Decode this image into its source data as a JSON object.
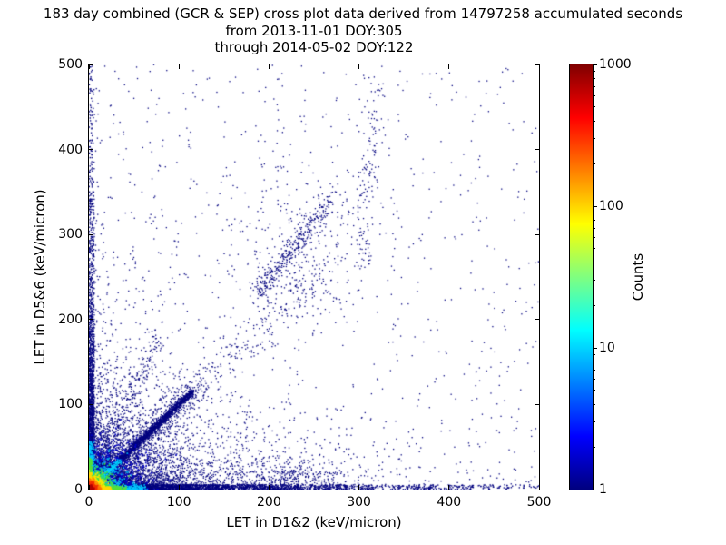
{
  "chart_data": {
    "type": "scatter",
    "title": "183 day combined (GCR & SEP) cross plot data derived from 14797258 accumulated seconds",
    "subtitle_from": "from 2013-11-01 DOY:305",
    "subtitle_through": "through 2014-05-02 DOY:122",
    "xlabel": "LET in D1&2 (keV/micron)",
    "ylabel": "LET in D5&6 (keV/micron)",
    "xlim": [
      0,
      500
    ],
    "ylim": [
      0,
      500
    ],
    "xticks": [
      0,
      100,
      200,
      300,
      400,
      500
    ],
    "yticks": [
      0,
      100,
      200,
      300,
      400,
      500
    ],
    "grid": false,
    "legend": "none",
    "base_point_color": "#00007f",
    "colorbar": {
      "label": "Counts",
      "scale": "log",
      "min": 1,
      "max": 1000,
      "ticks": [
        1,
        10,
        100,
        1000
      ],
      "minor_tick_values": [
        2,
        3,
        4,
        5,
        6,
        7,
        8,
        9,
        20,
        30,
        40,
        50,
        60,
        70,
        80,
        90,
        200,
        300,
        400,
        500,
        600,
        700,
        800,
        900
      ],
      "colormap": "jet",
      "stops": [
        [
          0,
          "#00007f"
        ],
        [
          0.125,
          "#0000ff"
        ],
        [
          0.375,
          "#00ffff"
        ],
        [
          0.625,
          "#ffff00"
        ],
        [
          0.875,
          "#ff0000"
        ],
        [
          1,
          "#800000"
        ]
      ]
    },
    "density_features": [
      {
        "name": "background-sparse",
        "kind": "uniform",
        "n": 780,
        "x": [
          0,
          500
        ],
        "y": [
          0,
          500
        ],
        "color": "#00007f",
        "size": 1.3,
        "seed": 11
      },
      {
        "name": "low-cloud-broad",
        "kind": "exp",
        "n": 2400,
        "sx": 65,
        "sy": 42,
        "color": "#00007f",
        "size": 1.3,
        "seed": 21
      },
      {
        "name": "low-cloud-tight",
        "kind": "exp",
        "n": 1700,
        "sx": 26,
        "sy": 18,
        "color": "#00007f",
        "size": 1.4,
        "seed": 31
      },
      {
        "name": "left-tall-cloud",
        "kind": "exp",
        "n": 520,
        "sx": 30,
        "sy": 130,
        "color": "#00007f",
        "size": 1.3,
        "seed": 41
      },
      {
        "name": "bottom-wide-cloud",
        "kind": "exp",
        "n": 800,
        "sx": 130,
        "sy": 22,
        "color": "#00007f",
        "size": 1.3,
        "seed": 51
      },
      {
        "name": "bottom-band",
        "kind": "strip_x",
        "n": 2000,
        "yr": [
          0,
          6
        ],
        "scale": 130,
        "color": "#00007f",
        "size": 1.4,
        "seed": 61
      },
      {
        "name": "bottom-band-far",
        "kind": "strip_x",
        "n": 450,
        "yr": [
          0,
          5
        ],
        "scale": 280,
        "color": "#00007f",
        "size": 1.4,
        "seed": 71
      },
      {
        "name": "left-band",
        "kind": "strip_y",
        "n": 1500,
        "xr": [
          0,
          6
        ],
        "scale": 110,
        "color": "#00007f",
        "size": 1.4,
        "seed": 81
      },
      {
        "name": "left-band-far",
        "kind": "strip_y",
        "n": 350,
        "xr": [
          0,
          4
        ],
        "scale": 260,
        "color": "#00007f",
        "size": 1.4,
        "seed": 91
      },
      {
        "name": "main-diagonal",
        "kind": "line",
        "n": 1500,
        "x1": 4,
        "y1": 4,
        "x2": 115,
        "y2": 115,
        "w": 1.8,
        "color": "#00007f",
        "size": 1.4,
        "seed": 101
      },
      {
        "name": "main-diagonal-halo",
        "kind": "line",
        "n": 650,
        "x1": 5,
        "y1": 5,
        "x2": 120,
        "y2": 120,
        "w": 7,
        "color": "#00007f",
        "size": 1.3,
        "seed": 111
      },
      {
        "name": "diagonal-extension",
        "kind": "line",
        "n": 230,
        "x1": 115,
        "y1": 115,
        "x2": 265,
        "y2": 265,
        "w": 14,
        "color": "#00007f",
        "size": 1.3,
        "seed": 121
      },
      {
        "name": "steep-streak",
        "kind": "line",
        "n": 230,
        "x1": 8,
        "y1": 12,
        "x2": 80,
        "y2": 185,
        "w": 5.5,
        "color": "#00007f",
        "size": 1.3,
        "seed": 131
      },
      {
        "name": "upper-diagonal-streak",
        "kind": "line",
        "n": 330,
        "x1": 185,
        "y1": 228,
        "x2": 266,
        "y2": 338,
        "w": 5,
        "color": "#00007f",
        "size": 1.3,
        "seed": 141
      },
      {
        "name": "upper-diagonal-cloud",
        "kind": "gauss",
        "n": 240,
        "cx": 235,
        "cy": 290,
        "sx": 38,
        "sy": 48,
        "color": "#00007f",
        "size": 1.3,
        "seed": 151
      },
      {
        "name": "bottom-mid-knot",
        "kind": "gauss",
        "n": 280,
        "cx": 228,
        "cy": 14,
        "sx": 34,
        "sy": 11,
        "color": "#00007f",
        "size": 1.3,
        "seed": 161
      },
      {
        "name": "vertical-streak-300",
        "kind": "line",
        "n": 150,
        "x1": 303,
        "y1": 255,
        "x2": 317,
        "y2": 485,
        "w": 7,
        "color": "#00007f",
        "size": 1.3,
        "seed": 171
      },
      {
        "name": "origin-blue-halo",
        "kind": "gauss",
        "n": 1400,
        "cx": 7,
        "cy": 7,
        "sx": 26,
        "sy": 24,
        "color": "#0000cd",
        "size": 1.6,
        "seed": 181
      },
      {
        "name": "origin-cyan",
        "kind": "gauss",
        "n": 950,
        "cx": 5.5,
        "cy": 5.5,
        "sx": 15,
        "sy": 14,
        "color": "#00b2ee",
        "size": 1.7,
        "seed": 191
      },
      {
        "name": "axis-cyan-x",
        "kind": "line",
        "n": 280,
        "x1": 0,
        "y1": 2,
        "x2": 62,
        "y2": 2,
        "w": 2.2,
        "color": "#00c8ff",
        "size": 1.6,
        "seed": 201
      },
      {
        "name": "axis-cyan-y",
        "kind": "line",
        "n": 240,
        "x1": 2,
        "y1": 0,
        "x2": 2,
        "y2": 55,
        "w": 2.2,
        "color": "#00c8ff",
        "size": 1.6,
        "seed": 211
      },
      {
        "name": "diagonal-cyan",
        "kind": "line",
        "n": 170,
        "x1": 4,
        "y1": 4,
        "x2": 34,
        "y2": 34,
        "w": 1.6,
        "color": "#00d5ff",
        "size": 1.5,
        "seed": 221
      },
      {
        "name": "origin-green",
        "kind": "gauss",
        "n": 820,
        "cx": 4.5,
        "cy": 4.5,
        "sx": 9.5,
        "sy": 9,
        "color": "#3ee04a",
        "size": 1.7,
        "seed": 231
      },
      {
        "name": "axis-green-x",
        "kind": "line",
        "n": 240,
        "x1": 0,
        "y1": 1.3,
        "x2": 40,
        "y2": 1.3,
        "w": 1.5,
        "color": "#55e139",
        "size": 1.6,
        "seed": 241
      },
      {
        "name": "axis-green-y",
        "kind": "line",
        "n": 210,
        "x1": 1.3,
        "y1": 0,
        "x2": 1.3,
        "y2": 36,
        "w": 1.5,
        "color": "#55e139",
        "size": 1.6,
        "seed": 251
      },
      {
        "name": "origin-yellow",
        "kind": "gauss",
        "n": 680,
        "cx": 3.5,
        "cy": 3.5,
        "sx": 6,
        "sy": 5.6,
        "color": "#ffe600",
        "size": 1.8,
        "seed": 261
      },
      {
        "name": "axis-yellow-x",
        "kind": "line",
        "n": 210,
        "x1": 0,
        "y1": 0.9,
        "x2": 24,
        "y2": 0.9,
        "w": 1.1,
        "color": "#ffd900",
        "size": 1.6,
        "seed": 271
      },
      {
        "name": "axis-yellow-y",
        "kind": "line",
        "n": 180,
        "x1": 0.9,
        "y1": 0,
        "x2": 0.9,
        "y2": 20,
        "w": 1.1,
        "color": "#ffd900",
        "size": 1.6,
        "seed": 281
      },
      {
        "name": "origin-orange",
        "kind": "gauss",
        "n": 580,
        "cx": 2.8,
        "cy": 2.8,
        "sx": 3.8,
        "sy": 3.6,
        "color": "#ff8c00",
        "size": 1.8,
        "seed": 291
      },
      {
        "name": "axis-orange-x",
        "kind": "line",
        "n": 160,
        "x1": 0,
        "y1": 0.6,
        "x2": 13,
        "y2": 0.6,
        "w": 0.9,
        "color": "#ff7400",
        "size": 1.5,
        "seed": 301
      },
      {
        "name": "axis-orange-y",
        "kind": "line",
        "n": 140,
        "x1": 0.6,
        "y1": 0,
        "x2": 0.6,
        "y2": 11,
        "w": 0.9,
        "color": "#ff7400",
        "size": 1.5,
        "seed": 311
      },
      {
        "name": "origin-red",
        "kind": "gauss",
        "n": 520,
        "cx": 2.2,
        "cy": 2.2,
        "sx": 2.4,
        "sy": 2.3,
        "color": "#f22c00",
        "size": 1.8,
        "seed": 321
      },
      {
        "name": "origin-dark-red",
        "kind": "gauss",
        "n": 280,
        "cx": 1.5,
        "cy": 1.5,
        "sx": 1.3,
        "sy": 1.3,
        "color": "#b00000",
        "size": 1.8,
        "seed": 331
      }
    ]
  }
}
